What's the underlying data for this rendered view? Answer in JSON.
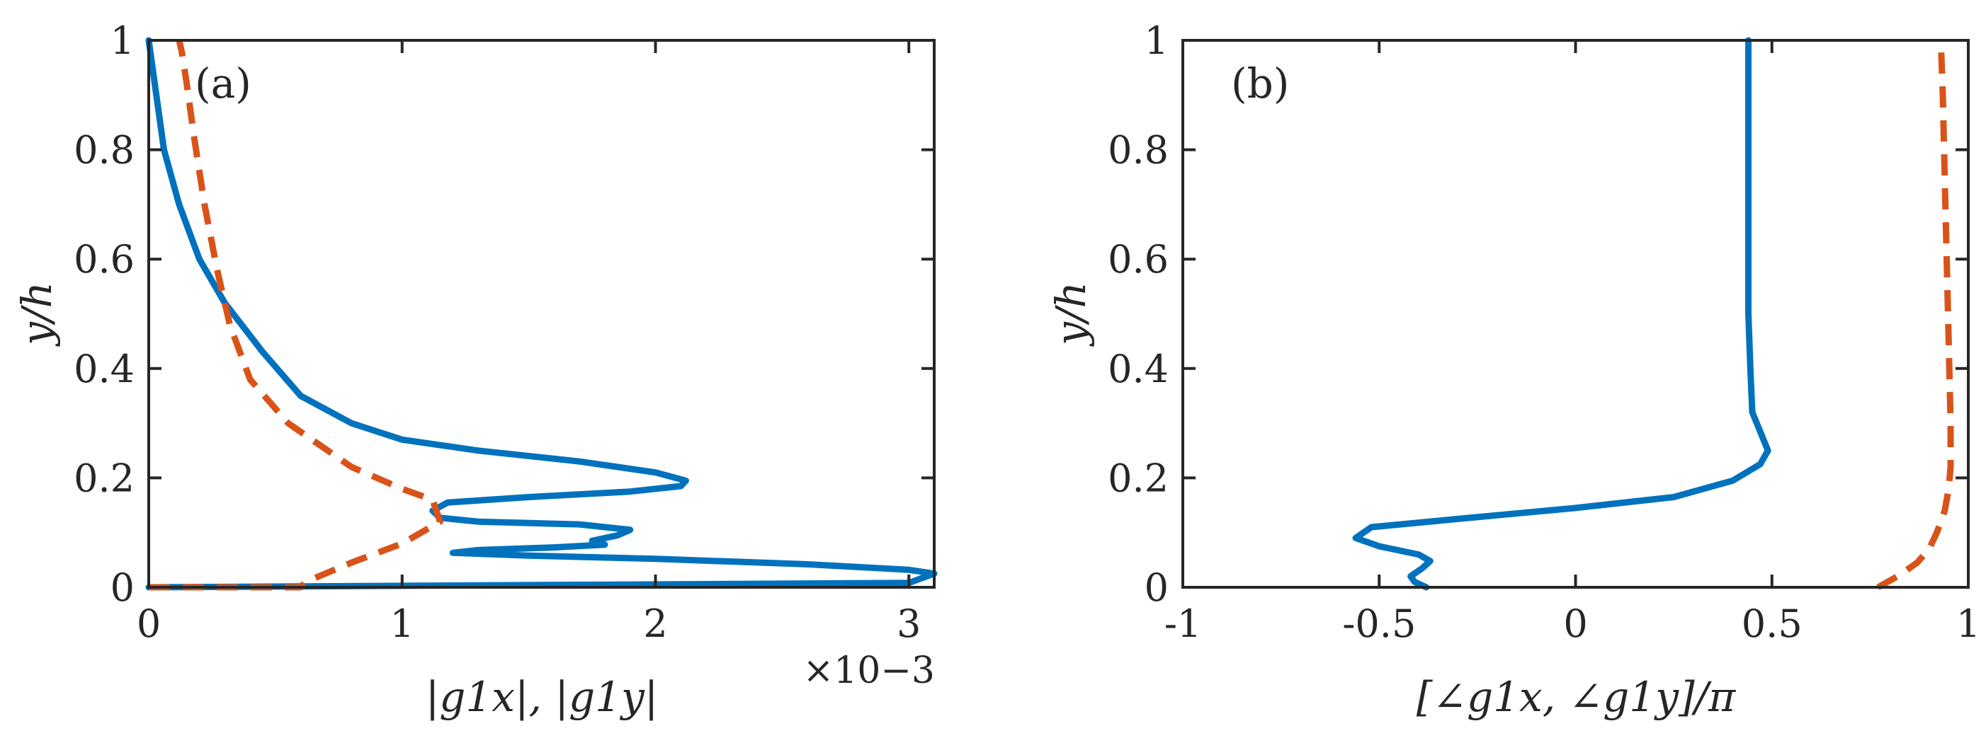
{
  "chart_data": [
    {
      "type": "line",
      "panel_label": "(a)",
      "xlabel": "|g1x|, |g1y|",
      "ylabel": "y/h",
      "x_exponent": "×10−3",
      "xlim": [
        0,
        3.1
      ],
      "ylim": [
        0,
        1
      ],
      "xticks": [
        0,
        1,
        2,
        3
      ],
      "xtick_labels": [
        "0",
        "1",
        "2",
        "3"
      ],
      "yticks": [
        0,
        0.2,
        0.4,
        0.6,
        0.8,
        1
      ],
      "ytick_labels": [
        "0",
        "0.2",
        "0.4",
        "0.6",
        "0.8",
        "1"
      ],
      "series": [
        {
          "name": "|g1x|",
          "style": "solid",
          "color": "#0072BD",
          "x": [
            0.0,
            3.0,
            3.1,
            3.0,
            2.6,
            2.0,
            1.5,
            1.2,
            1.3,
            1.6,
            1.8,
            1.75,
            1.85,
            1.9,
            1.7,
            1.3,
            1.15,
            1.12,
            1.18,
            1.5,
            1.9,
            2.1,
            2.12,
            2.0,
            1.7,
            1.3,
            1.0,
            0.8,
            0.6,
            0.45,
            0.3,
            0.2,
            0.12,
            0.06,
            0.03,
            0.0
          ],
          "y": [
            0.0,
            0.008,
            0.025,
            0.032,
            0.042,
            0.052,
            0.058,
            0.063,
            0.068,
            0.073,
            0.078,
            0.085,
            0.095,
            0.105,
            0.115,
            0.12,
            0.127,
            0.14,
            0.155,
            0.165,
            0.175,
            0.185,
            0.195,
            0.21,
            0.23,
            0.25,
            0.27,
            0.3,
            0.35,
            0.43,
            0.52,
            0.6,
            0.7,
            0.8,
            0.9,
            1.0
          ]
        },
        {
          "name": "|g1y|",
          "style": "dashed",
          "color": "#D95319",
          "x": [
            0.0,
            0.6,
            0.62,
            0.8,
            1.0,
            1.15,
            1.12,
            1.0,
            0.8,
            0.55,
            0.4,
            0.32,
            0.27,
            0.22,
            0.18,
            0.15,
            0.13,
            0.12
          ],
          "y": [
            0.0,
            0.0,
            0.01,
            0.045,
            0.08,
            0.12,
            0.16,
            0.18,
            0.22,
            0.3,
            0.38,
            0.48,
            0.58,
            0.7,
            0.82,
            0.92,
            0.98,
            1.0
          ]
        }
      ]
    },
    {
      "type": "line",
      "panel_label": "(b)",
      "xlabel": "[∠g1x, ∠g1y]/π",
      "ylabel": "y/h",
      "xlim": [
        -1,
        1
      ],
      "ylim": [
        0,
        1
      ],
      "xticks": [
        -1,
        -0.5,
        0,
        0.5,
        1
      ],
      "xtick_labels": [
        "-1",
        "-0.5",
        "0",
        "0.5",
        "1"
      ],
      "yticks": [
        0,
        0.2,
        0.4,
        0.6,
        0.8,
        1
      ],
      "ytick_labels": [
        "0",
        "0.2",
        "0.4",
        "0.6",
        "0.8",
        "1"
      ],
      "series": [
        {
          "name": "∠g1x",
          "style": "solid",
          "color": "#0072BD",
          "x": [
            -0.38,
            -0.41,
            -0.42,
            -0.39,
            -0.37,
            -0.4,
            -0.5,
            -0.56,
            -0.52,
            -0.3,
            0.0,
            0.25,
            0.4,
            0.47,
            0.49,
            0.47,
            0.45,
            0.445,
            0.44,
            0.44,
            0.44,
            0.44
          ],
          "y": [
            0.0,
            0.01,
            0.02,
            0.035,
            0.048,
            0.06,
            0.075,
            0.09,
            0.11,
            0.125,
            0.145,
            0.165,
            0.195,
            0.225,
            0.25,
            0.285,
            0.32,
            0.4,
            0.5,
            0.7,
            0.9,
            1.0
          ]
        },
        {
          "name": "∠g1y",
          "style": "dashed",
          "color": "#D95319",
          "x": [
            0.77,
            0.82,
            0.87,
            0.9,
            0.92,
            0.94,
            0.95,
            0.955,
            0.955,
            0.95,
            0.945,
            0.94,
            0.935,
            0.93
          ],
          "y": [
            0.0,
            0.02,
            0.045,
            0.07,
            0.1,
            0.14,
            0.18,
            0.22,
            0.3,
            0.45,
            0.6,
            0.75,
            0.9,
            1.0
          ]
        }
      ]
    }
  ]
}
